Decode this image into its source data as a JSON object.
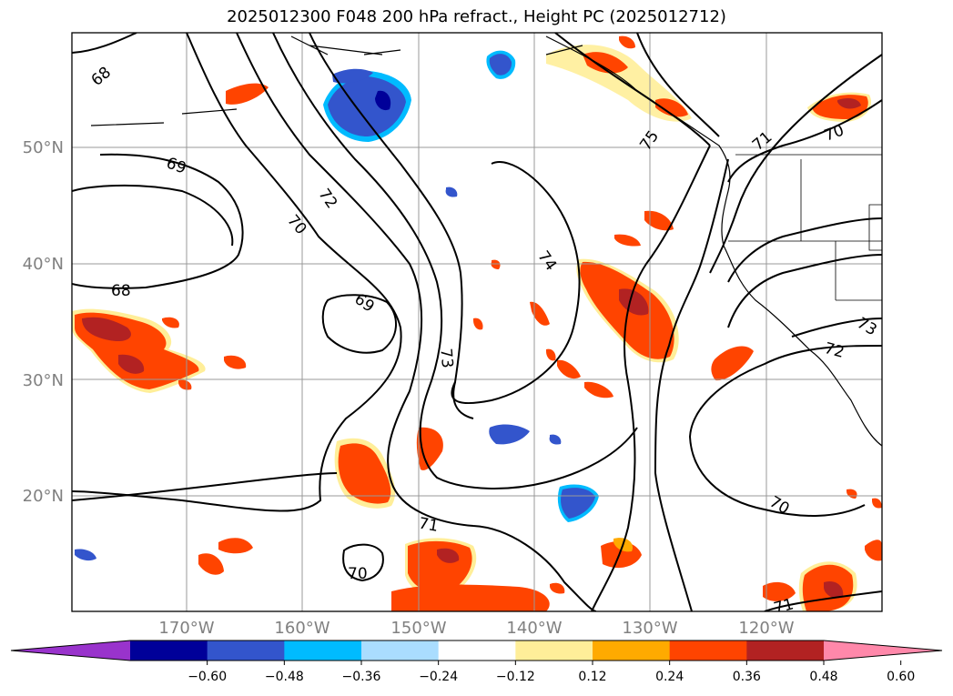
{
  "title": "2025012300 F048 200 hPa refract., Height PC (2025012712)",
  "lat_labels": [
    "50°N",
    "40°N",
    "30°N",
    "20°N"
  ],
  "lon_labels": [
    "170°W",
    "160°W",
    "150°W",
    "140°W",
    "130°W",
    "120°W"
  ],
  "contour_labels": [
    "68",
    "69",
    "72",
    "70",
    "75",
    "71",
    "70",
    "68",
    "69",
    "73",
    "74",
    "73",
    "72",
    "71",
    "70",
    "70",
    "71"
  ],
  "colorbar": {
    "colors": [
      "#9933cc",
      "#000099",
      "#3355cc",
      "#00bbff",
      "#aaddff",
      "#ffffff",
      "#ffee99",
      "#ffaa00",
      "#ff4400",
      "#b22222",
      "#ff88aa"
    ],
    "tick_labels": [
      "−0.60",
      "−0.48",
      "−0.36",
      "−0.24",
      "−0.12",
      "0.12",
      "0.24",
      "0.36",
      "0.48",
      "0.60"
    ]
  }
}
